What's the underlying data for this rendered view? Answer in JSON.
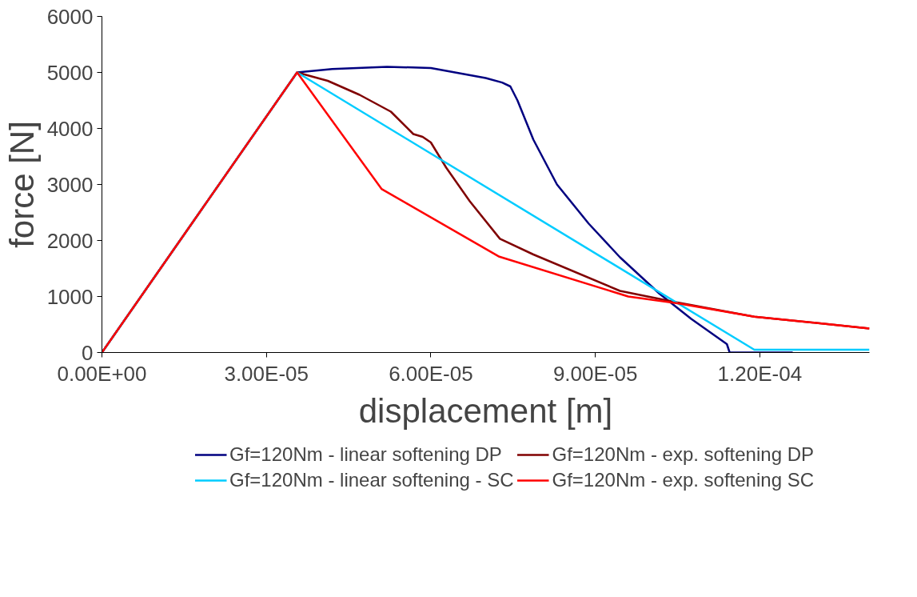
{
  "chart_data": {
    "type": "line",
    "xlabel": "displacement [m]",
    "ylabel": "force [N]",
    "xlim": [
      0,
      0.00014
    ],
    "ylim": [
      0,
      6000
    ],
    "xticks": [
      {
        "value": 0,
        "label": "0.00E+00"
      },
      {
        "value": 3e-05,
        "label": "3.00E-05"
      },
      {
        "value": 6e-05,
        "label": "6.00E-05"
      },
      {
        "value": 9e-05,
        "label": "9.00E-05"
      },
      {
        "value": 0.00012,
        "label": "1.20E-04"
      }
    ],
    "yticks": [
      0,
      1000,
      2000,
      3000,
      4000,
      5000,
      6000
    ],
    "grid": false,
    "legend": "bottom",
    "marker": "none",
    "line_style": "solid",
    "series": [
      {
        "name": "Gf=120Nm - linear softening DP",
        "color": "#000080",
        "x": [
          0,
          3.56e-05,
          4.2e-05,
          5.2e-05,
          6e-05,
          7e-05,
          7.3e-05,
          7.45e-05,
          7.58e-05,
          7.87e-05,
          8.3e-05,
          8.88e-05,
          9.45e-05,
          0.0001017,
          0.0001075,
          0.000114,
          0.0001145,
          0.000126
        ],
        "values": [
          0,
          5000,
          5060,
          5100,
          5080,
          4900,
          4820,
          4750,
          4500,
          3800,
          3000,
          2300,
          1700,
          1050,
          600,
          150,
          0,
          0
        ]
      },
      {
        "name": "Gf=120Nm - exp. softening DP",
        "color": "#800000",
        "x": [
          0,
          3.56e-05,
          4.12e-05,
          4.7e-05,
          5.27e-05,
          5.68e-05,
          5.85e-05,
          6e-05,
          6.28e-05,
          6.71e-05,
          7.26e-05,
          7.87e-05,
          9.45e-05,
          0.0001046,
          0.000119,
          0.00014
        ],
        "values": [
          0,
          5000,
          4850,
          4600,
          4300,
          3900,
          3850,
          3750,
          3300,
          2700,
          2030,
          1750,
          1100,
          900,
          640,
          430
        ]
      },
      {
        "name": "Gf=120Nm - linear softening - SC",
        "color": "#00ccff",
        "x": [
          0,
          3.56e-05,
          0.000119,
          0.00014
        ],
        "values": [
          0,
          5000,
          50,
          50
        ]
      },
      {
        "name": "Gf=120Nm - exp. softening SC",
        "color": "#ff0000",
        "x": [
          0,
          3.56e-05,
          5.1e-05,
          7.25e-05,
          9.6e-05,
          0.000105,
          0.000119,
          0.00014
        ],
        "values": [
          0,
          5000,
          2920,
          1710,
          1000,
          880,
          640,
          430
        ]
      }
    ]
  }
}
